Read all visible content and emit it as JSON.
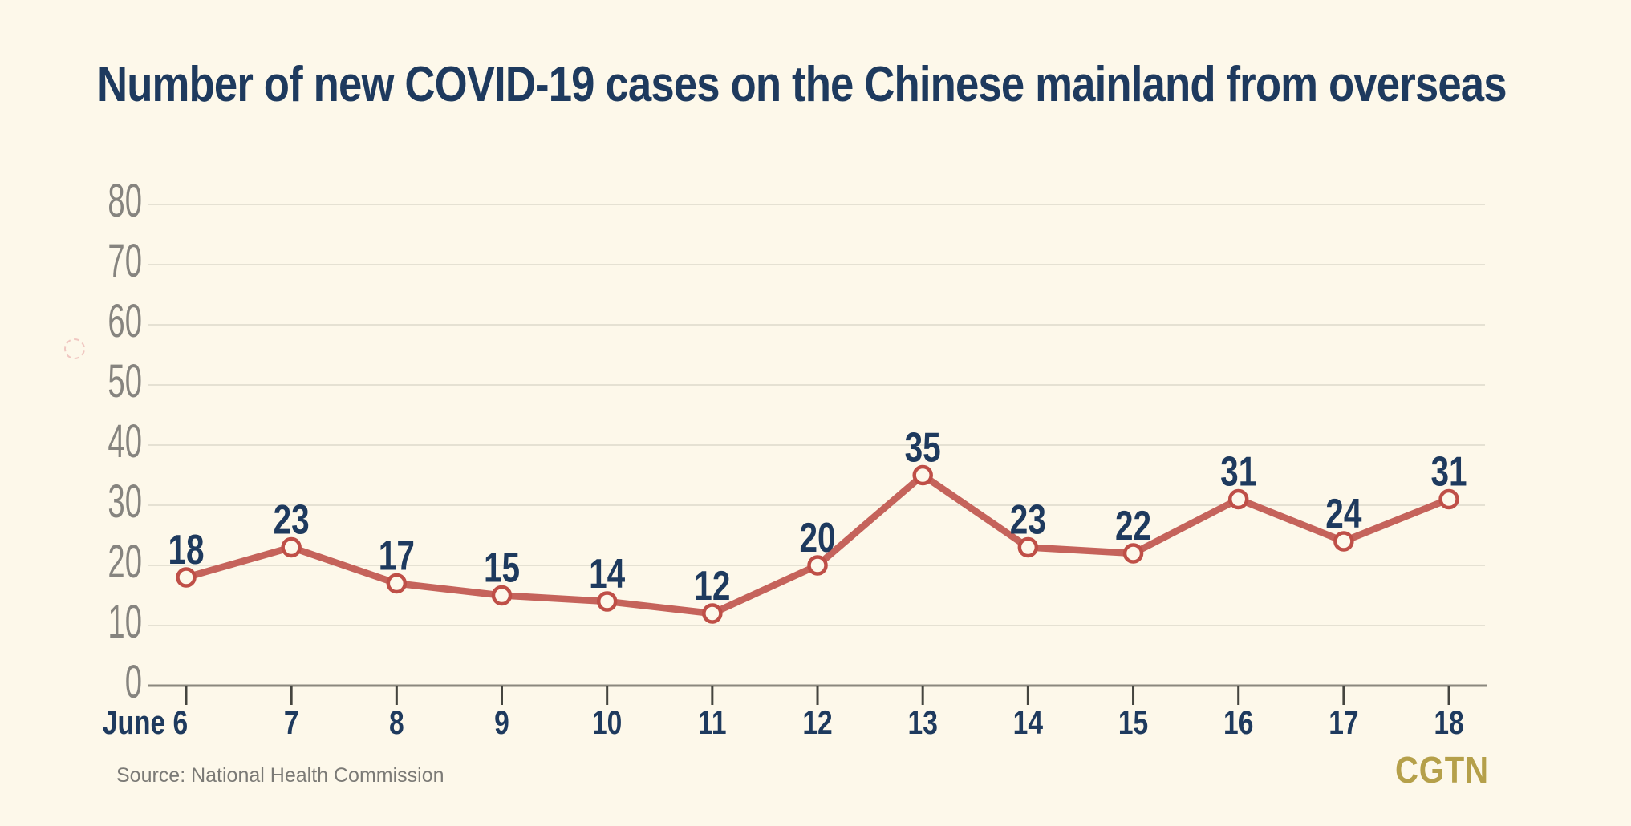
{
  "title": "Number of new COVID-19 cases on the Chinese mainland from overseas",
  "source": "Source: National Health Commission",
  "logo": "CGTN",
  "chart_data": {
    "type": "line",
    "title": "Number of new COVID-19 cases on the Chinese mainland from overseas",
    "categories": [
      "June 6",
      "7",
      "8",
      "9",
      "10",
      "11",
      "12",
      "13",
      "14",
      "15",
      "16",
      "17",
      "18"
    ],
    "values": [
      18,
      23,
      17,
      15,
      14,
      12,
      20,
      35,
      23,
      22,
      31,
      24,
      31
    ],
    "xlabel": "",
    "ylabel": "",
    "ylim": [
      0,
      80
    ],
    "yticks": [
      0,
      10,
      20,
      30,
      40,
      50,
      60,
      70,
      80
    ],
    "grid": true,
    "legend": false,
    "colors": {
      "background": "#FDF8EA",
      "line": "#C5635B",
      "marker_stroke": "#BF4F47",
      "marker_fill": "#FDF8EA",
      "value_label": "#1E3A5E",
      "x_label": "#1E3A5E",
      "y_label": "#86847F",
      "gridline": "#E5E1D3",
      "axis_line": "#8B887E",
      "tick": "#45453F",
      "title_text": "#1E3A5E",
      "source_text": "#7B7A76",
      "logo_gold": "#B5A04A"
    }
  }
}
